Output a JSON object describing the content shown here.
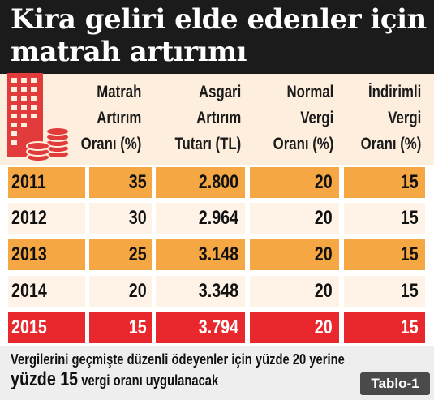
{
  "title": {
    "line1": "Kira geliri elde edenler için",
    "line2": "matrah artırımı"
  },
  "icon": "building-with-coins-icon",
  "columns": [
    {
      "lines": [
        "Matrah",
        "Artırım",
        "Oranı (%)"
      ]
    },
    {
      "lines": [
        "Asgari",
        "Artırım",
        "Tutarı (TL)"
      ]
    },
    {
      "lines": [
        "Normal",
        "Vergi",
        "Oranı (%)"
      ]
    },
    {
      "lines": [
        "İndirimli",
        "Vergi",
        "Oranı (%)"
      ]
    }
  ],
  "rows": [
    {
      "year": "2011",
      "matrah": "35",
      "asgari": "2.800",
      "normal": "20",
      "indirimli": "15"
    },
    {
      "year": "2012",
      "matrah": "30",
      "asgari": "2.964",
      "normal": "20",
      "indirimli": "15"
    },
    {
      "year": "2013",
      "matrah": "25",
      "asgari": "3.148",
      "normal": "20",
      "indirimli": "15"
    },
    {
      "year": "2014",
      "matrah": "20",
      "asgari": "3.348",
      "normal": "20",
      "indirimli": "15"
    },
    {
      "year": "2015",
      "matrah": "15",
      "asgari": "3.794",
      "normal": "20",
      "indirimli": "15"
    }
  ],
  "note": {
    "line1": "Vergilerini geçmişte düzenli ödeyenler için yüzde 20 yerine",
    "line2_big": "yüzde 15",
    "line2_rest": " vergi oranı uygulanacak"
  },
  "badge": "Tablo-1",
  "colors": {
    "title_bg": "#1b1b1b",
    "header_bg": "#fdeedd",
    "orange": "#f5a743",
    "cream": "#fef3e6",
    "red": "#e8282c",
    "icon_red": "#e23b3b"
  }
}
